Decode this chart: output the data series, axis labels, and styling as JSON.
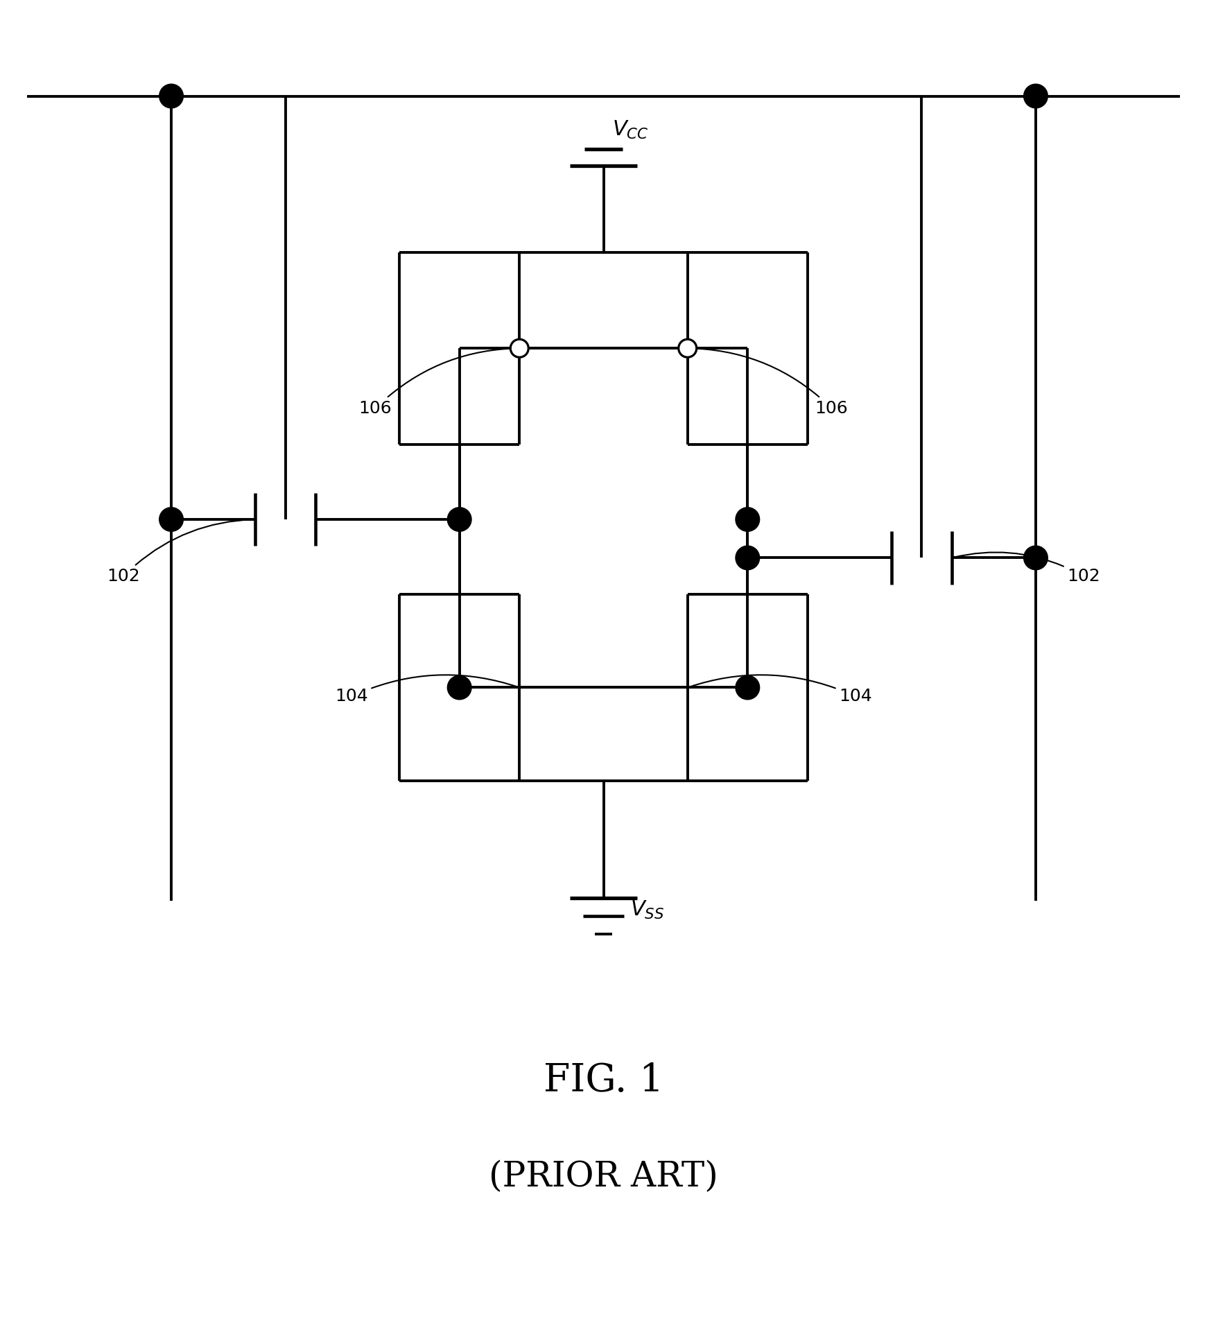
{
  "fig_width": 17.41,
  "fig_height": 19.05,
  "bg_color": "#ffffff",
  "line_color": "#000000",
  "line_width": 2.8,
  "title": "FIG. 1",
  "subtitle": "(PRIOR ART)",
  "title_fontsize": 40,
  "subtitle_fontsize": 36,
  "label_102": "102",
  "label_104": "104",
  "label_106": "106",
  "vcc_label": "$V_{CC}$",
  "vss_label": "$V_{SS}$"
}
